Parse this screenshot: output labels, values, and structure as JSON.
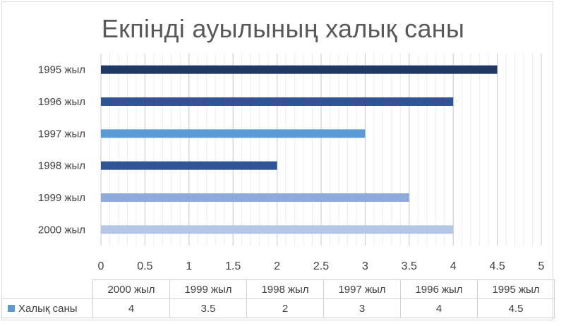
{
  "chart_data": {
    "type": "bar",
    "orientation": "horizontal",
    "title": "Екпінді ауылының халық саны",
    "categories": [
      "1995 жыл",
      "1996 жыл",
      "1997 жыл",
      "1998 жыл",
      "1999 жыл",
      "2000 жыл"
    ],
    "series": [
      {
        "name": "Халық саны",
        "values": [
          4.5,
          4,
          3,
          2,
          3.5,
          4
        ],
        "bar_colors": [
          "#1f3864",
          "#2f5597",
          "#5b9bd5",
          "#2f5597",
          "#8ea9db",
          "#b4c7e7"
        ]
      }
    ],
    "xlim": [
      0,
      5
    ],
    "x_ticks": [
      "0",
      "0.5",
      "1",
      "1.5",
      "2",
      "2.5",
      "3",
      "3.5",
      "4",
      "4.5",
      "5"
    ],
    "grid": true,
    "data_table": {
      "columns": [
        "2000 жыл",
        "1999 жыл",
        "1998 жыл",
        "1997 жыл",
        "1996 жыл",
        "1995 жыл"
      ],
      "row_label": "Халық саны",
      "values": [
        "4",
        "3.5",
        "2",
        "3",
        "4",
        "4.5"
      ],
      "legend_color": "#5b9bd5"
    }
  }
}
